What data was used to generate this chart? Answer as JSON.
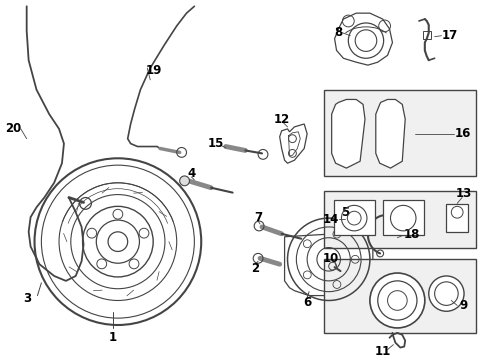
{
  "bg_color": "#ffffff",
  "line_color": "#444444",
  "label_color": "#000000",
  "label_fontsize": 8.5,
  "fig_width": 4.89,
  "fig_height": 3.6,
  "dpi": 100
}
